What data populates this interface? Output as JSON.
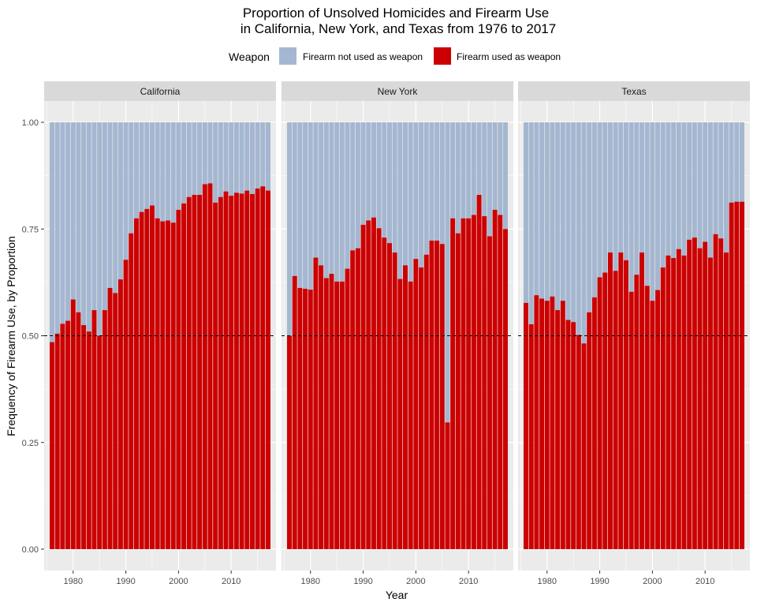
{
  "chart_data": {
    "type": "bar",
    "stacked": true,
    "title_line1": "Proportion of Unsolved Homicides and Firearm Use",
    "title_line2": "in California, New York, and Texas from 1976 to 2017",
    "xlabel": "Year",
    "ylabel": "Frequency of Firearm Use, by Proportion",
    "ylim": [
      0,
      1
    ],
    "xlim": [
      1974.5,
      2018.5
    ],
    "y_ticks": [
      "0.00",
      "0.25",
      "0.50",
      "0.75",
      "1.00"
    ],
    "x_ticks": [
      "1980",
      "1990",
      "2000",
      "2010"
    ],
    "reference_line": {
      "y": 0.5,
      "style": "dashed"
    },
    "legend": {
      "title": "Weapon",
      "position": "top",
      "items": [
        {
          "label": "Firearm not used as weapon",
          "color": "#a5b7d0"
        },
        {
          "label": "Firearm used as weapon",
          "color": "#cc0000"
        }
      ]
    },
    "years": [
      1976,
      1977,
      1978,
      1979,
      1980,
      1981,
      1982,
      1983,
      1984,
      1985,
      1986,
      1987,
      1988,
      1989,
      1990,
      1991,
      1992,
      1993,
      1994,
      1995,
      1996,
      1997,
      1998,
      1999,
      2000,
      2001,
      2002,
      2003,
      2004,
      2005,
      2006,
      2007,
      2008,
      2009,
      2010,
      2011,
      2012,
      2013,
      2014,
      2015,
      2016,
      2017
    ],
    "panels": [
      {
        "name": "California",
        "firearm_used": [
          0.485,
          0.505,
          0.528,
          0.535,
          0.585,
          0.555,
          0.525,
          0.51,
          0.56,
          0.5,
          0.56,
          0.612,
          0.6,
          0.632,
          0.678,
          0.74,
          0.775,
          0.79,
          0.797,
          0.805,
          0.775,
          0.768,
          0.77,
          0.765,
          0.795,
          0.81,
          0.825,
          0.83,
          0.83,
          0.855,
          0.857,
          0.812,
          0.825,
          0.838,
          0.828,
          0.835,
          0.833,
          0.84,
          0.832,
          0.845,
          0.85,
          0.84
        ]
      },
      {
        "name": "New York",
        "firearm_used": [
          0.5,
          0.64,
          0.612,
          0.61,
          0.608,
          0.683,
          0.665,
          0.635,
          0.645,
          0.627,
          0.627,
          0.657,
          0.7,
          0.705,
          0.76,
          0.77,
          0.777,
          0.752,
          0.73,
          0.717,
          0.695,
          0.633,
          0.665,
          0.627,
          0.68,
          0.66,
          0.69,
          0.723,
          0.723,
          0.715,
          0.297,
          0.775,
          0.74,
          0.775,
          0.775,
          0.783,
          0.83,
          0.78,
          0.733,
          0.795,
          0.783,
          0.75
        ]
      },
      {
        "name": "Texas",
        "firearm_used": [
          0.577,
          0.527,
          0.595,
          0.587,
          0.582,
          0.592,
          0.56,
          0.582,
          0.537,
          0.532,
          0.502,
          0.482,
          0.555,
          0.59,
          0.637,
          0.648,
          0.695,
          0.652,
          0.695,
          0.677,
          0.603,
          0.643,
          0.695,
          0.617,
          0.582,
          0.607,
          0.66,
          0.688,
          0.682,
          0.703,
          0.688,
          0.725,
          0.73,
          0.705,
          0.72,
          0.683,
          0.738,
          0.728,
          0.695,
          0.812,
          0.814,
          0.814
        ]
      }
    ]
  }
}
